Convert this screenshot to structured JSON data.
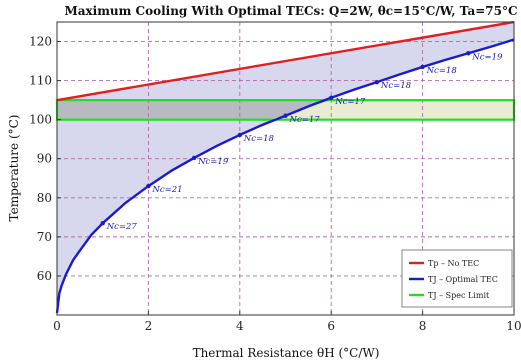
{
  "chart_data": {
    "type": "line",
    "title": "Maximum Cooling With Optimal TECs: Q=2W, θc=15°C/W, Ta=75°C",
    "xlabel": "Thermal Resistance θH (°C/W)",
    "ylabel": "Temperature (°C)",
    "xlim": [
      0,
      10
    ],
    "ylim": [
      50,
      125
    ],
    "x_ticks": [
      0,
      2,
      4,
      6,
      8,
      10
    ],
    "y_ticks": [
      60,
      70,
      80,
      90,
      100,
      110,
      120
    ],
    "grid": true,
    "legend_position": "bottom-right",
    "series": [
      {
        "name": "Tp – No TEC",
        "color": "#e02020",
        "x": [
          0,
          10
        ],
        "y": [
          105,
          125
        ]
      },
      {
        "name": "TJ – Optimal TEC",
        "color": "#1a1ad0",
        "x": [
          0,
          0.05,
          0.1,
          0.2,
          0.35,
          0.5,
          0.75,
          1,
          1.5,
          2,
          2.5,
          3,
          3.5,
          4,
          4.5,
          5,
          5.5,
          6,
          6.5,
          7,
          7.5,
          8,
          8.5,
          9,
          9.5,
          10
        ],
        "y": [
          50.5,
          55.5,
          57.5,
          60.5,
          64,
          66.5,
          70.5,
          73.5,
          78.7,
          83,
          86.9,
          90.2,
          93.3,
          96.1,
          98.7,
          101,
          103.4,
          105.6,
          107.7,
          109.6,
          111.6,
          113.5,
          115.3,
          117,
          118.7,
          120.5
        ]
      },
      {
        "name": "TJ – Spec Limit",
        "color": "#22dd22",
        "x": [
          0,
          10
        ],
        "y_band": [
          100,
          105
        ]
      }
    ],
    "markers": [
      {
        "x": 1,
        "y": 73.5,
        "label": "Nc=27"
      },
      {
        "x": 2,
        "y": 83,
        "label": "Nc=21"
      },
      {
        "x": 3,
        "y": 90.2,
        "label": "Nc=19"
      },
      {
        "x": 4,
        "y": 96.1,
        "label": "Nc=18"
      },
      {
        "x": 5,
        "y": 101,
        "label": "Nc=17"
      },
      {
        "x": 6,
        "y": 105.6,
        "label": "Nc=17"
      },
      {
        "x": 7,
        "y": 109.6,
        "label": "Nc=18"
      },
      {
        "x": 8,
        "y": 113.5,
        "label": "Nc=18"
      },
      {
        "x": 9,
        "y": 117,
        "label": "Nc=19"
      }
    ],
    "colors": {
      "fill_region": "#c9cbe8",
      "spec_band_fill": "#e9ecd3",
      "spec_band_overlap": "#b9b9c4",
      "grid": "#b06aa6"
    }
  }
}
